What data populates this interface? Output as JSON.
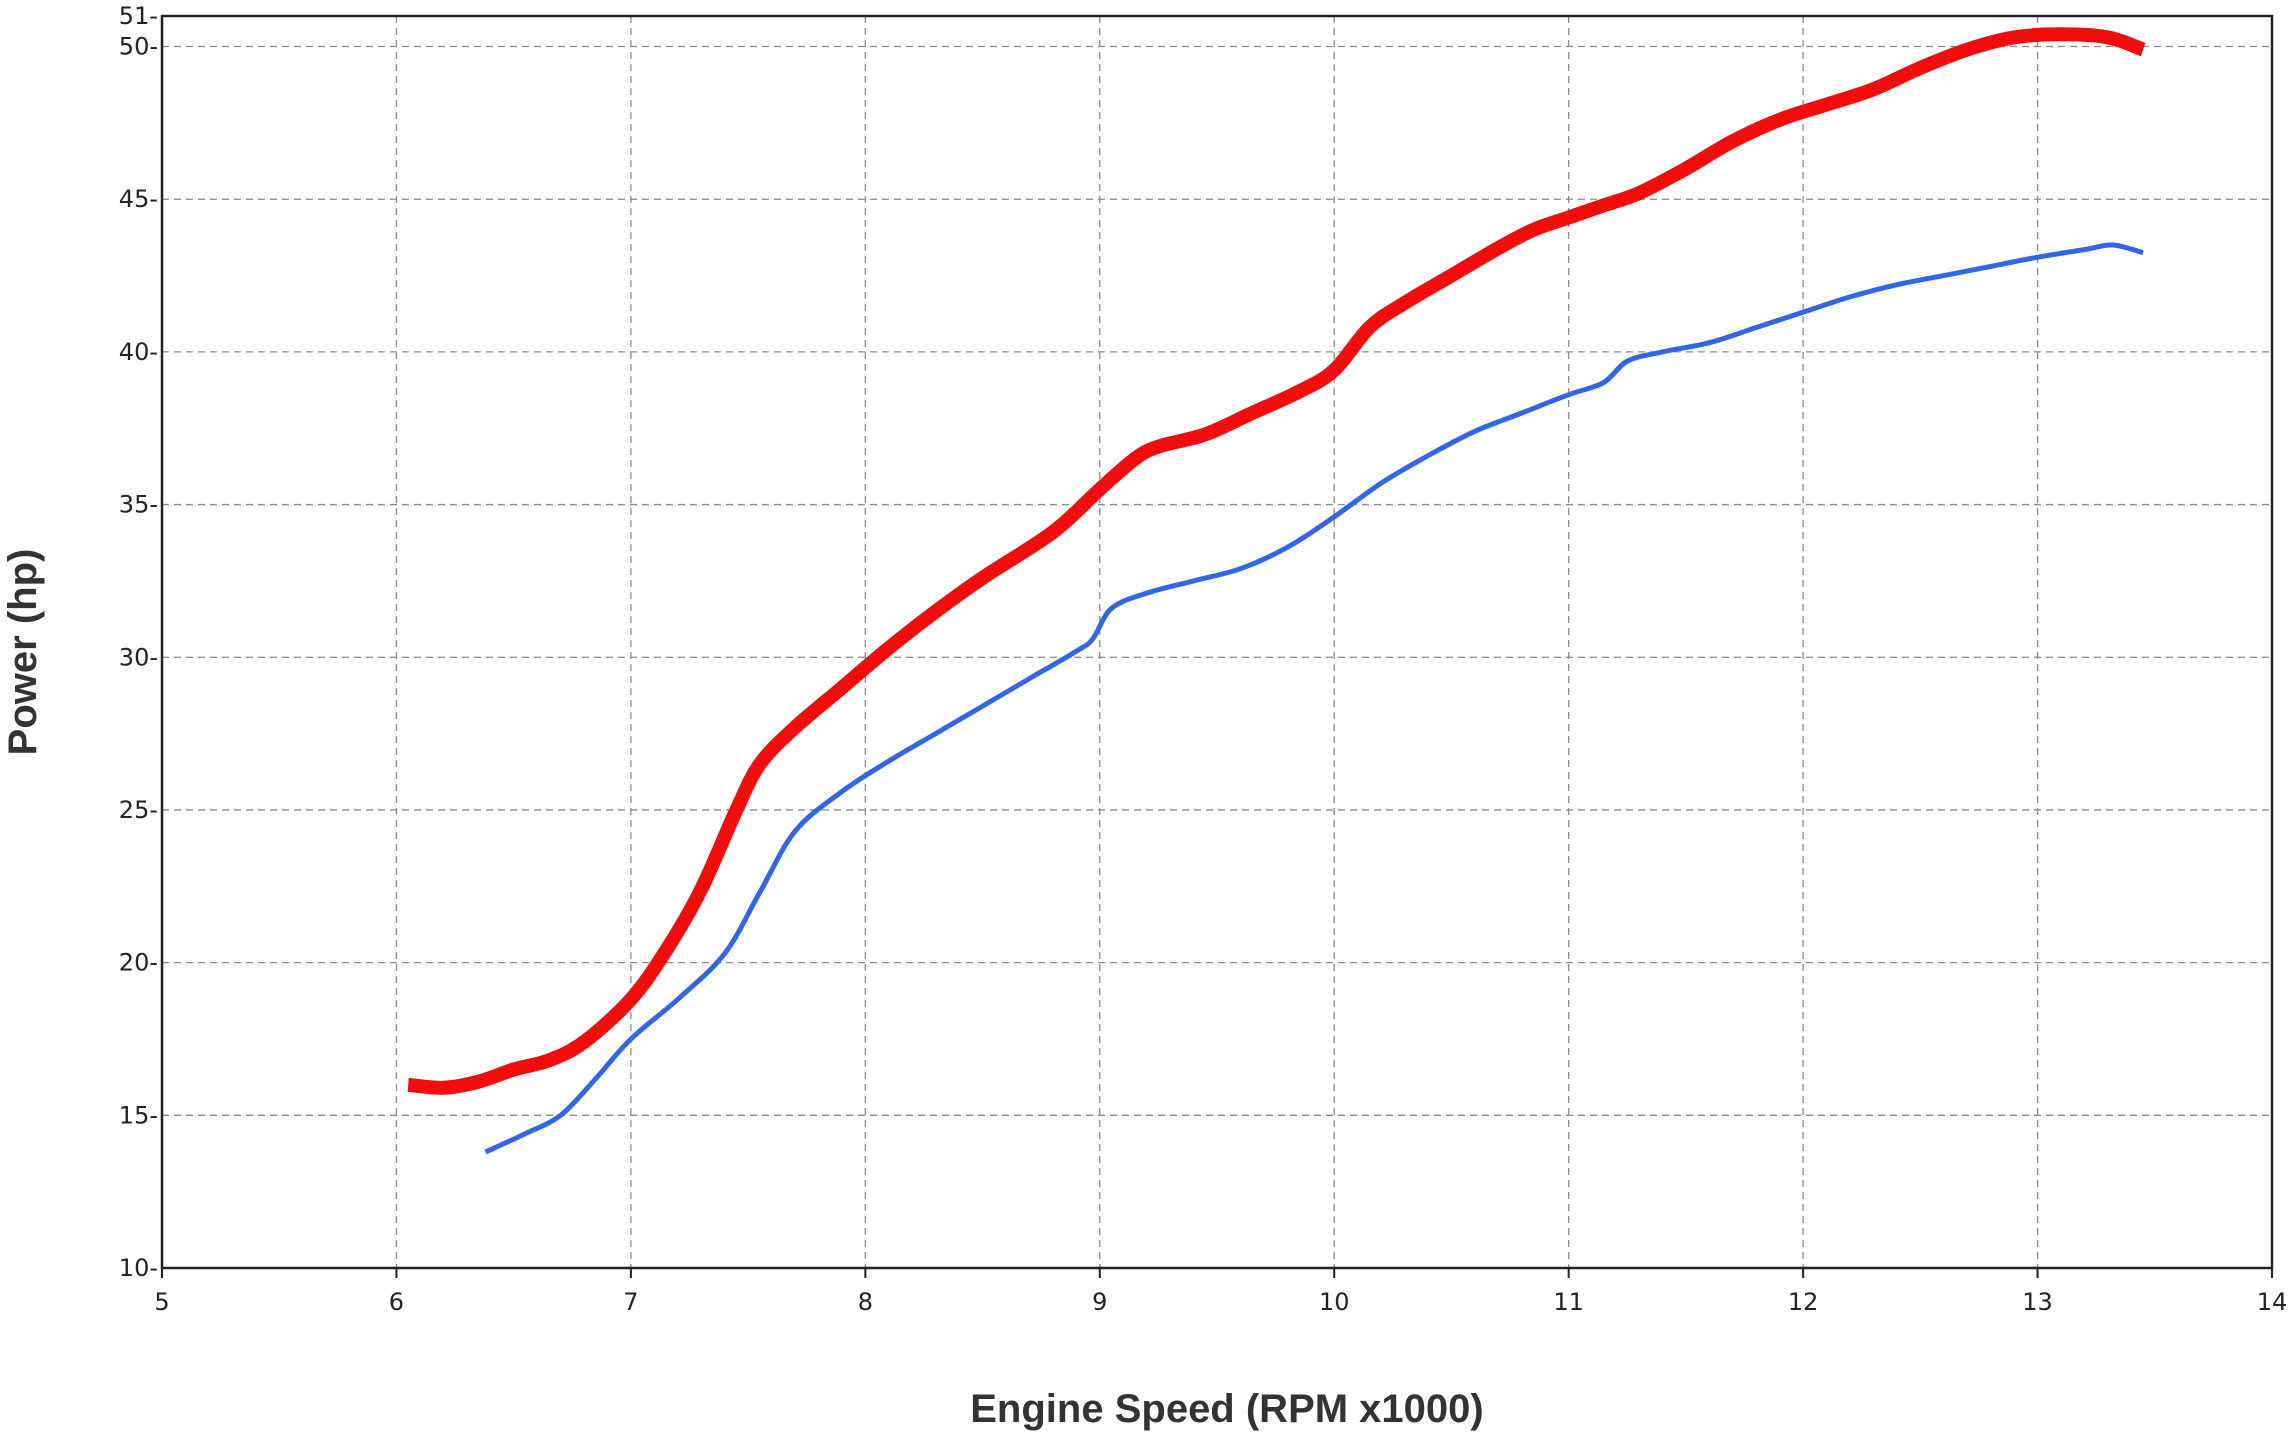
{
  "chart_data": {
    "type": "line",
    "title": "",
    "xlabel": "Engine Speed (RPM x1000)",
    "ylabel": "Power (hp)",
    "xlim": [
      5,
      14
    ],
    "ylim": [
      10,
      51
    ],
    "x_ticks": [
      5,
      6,
      7,
      8,
      9,
      10,
      11,
      12,
      13,
      14
    ],
    "y_ticks": [
      10,
      15,
      20,
      25,
      30,
      35,
      40,
      45,
      50,
      51
    ],
    "x_tick_labels": [
      "5",
      "6",
      "7",
      "8",
      "9",
      "10",
      "11",
      "12",
      "13",
      "14"
    ],
    "y_tick_labels": [
      "10-",
      "15-",
      "20-",
      "25-",
      "30-",
      "35-",
      "40-",
      "45-",
      "50-",
      "51-"
    ],
    "grid": true,
    "legend": "none",
    "series": [
      {
        "color": "#f20c0c",
        "line_width": "thick",
        "x": [
          6.05,
          6.2,
          6.35,
          6.5,
          6.65,
          6.8,
          7.0,
          7.15,
          7.3,
          7.45,
          7.55,
          7.7,
          7.9,
          8.1,
          8.3,
          8.5,
          8.8,
          9.0,
          9.15,
          9.25,
          9.45,
          9.65,
          9.85,
          10.0,
          10.15,
          10.3,
          10.5,
          10.7,
          10.85,
          11.0,
          11.15,
          11.3,
          11.5,
          11.7,
          11.9,
          12.1,
          12.3,
          12.5,
          12.7,
          12.9,
          13.1,
          13.3,
          13.45
        ],
        "y": [
          16.0,
          15.9,
          16.1,
          16.5,
          16.8,
          17.4,
          18.8,
          20.4,
          22.4,
          25.0,
          26.5,
          27.7,
          29.0,
          30.3,
          31.5,
          32.6,
          34.1,
          35.5,
          36.5,
          36.9,
          37.3,
          38.0,
          38.7,
          39.4,
          40.8,
          41.6,
          42.5,
          43.4,
          44.0,
          44.4,
          44.8,
          45.2,
          46.0,
          46.9,
          47.6,
          48.1,
          48.6,
          49.3,
          49.9,
          50.3,
          50.4,
          50.3,
          49.9
        ]
      },
      {
        "color": "#3366e6",
        "line_width": "thin",
        "x": [
          6.38,
          6.55,
          6.7,
          6.85,
          7.0,
          7.2,
          7.4,
          7.55,
          7.7,
          7.9,
          8.1,
          8.3,
          8.5,
          8.7,
          8.9,
          8.97,
          9.05,
          9.2,
          9.4,
          9.6,
          9.8,
          10.0,
          10.2,
          10.4,
          10.6,
          10.8,
          11.0,
          11.15,
          11.25,
          11.4,
          11.6,
          11.8,
          12.0,
          12.2,
          12.4,
          12.6,
          12.8,
          13.0,
          13.2,
          13.32,
          13.45
        ],
        "y": [
          13.8,
          14.4,
          15.0,
          16.2,
          17.5,
          18.8,
          20.3,
          22.3,
          24.3,
          25.6,
          26.6,
          27.5,
          28.4,
          29.3,
          30.2,
          30.6,
          31.6,
          32.1,
          32.5,
          32.9,
          33.6,
          34.6,
          35.7,
          36.6,
          37.4,
          38.0,
          38.6,
          39.0,
          39.7,
          40.0,
          40.3,
          40.8,
          41.3,
          41.8,
          42.2,
          42.5,
          42.8,
          43.1,
          43.35,
          43.5,
          43.25
        ]
      }
    ]
  }
}
